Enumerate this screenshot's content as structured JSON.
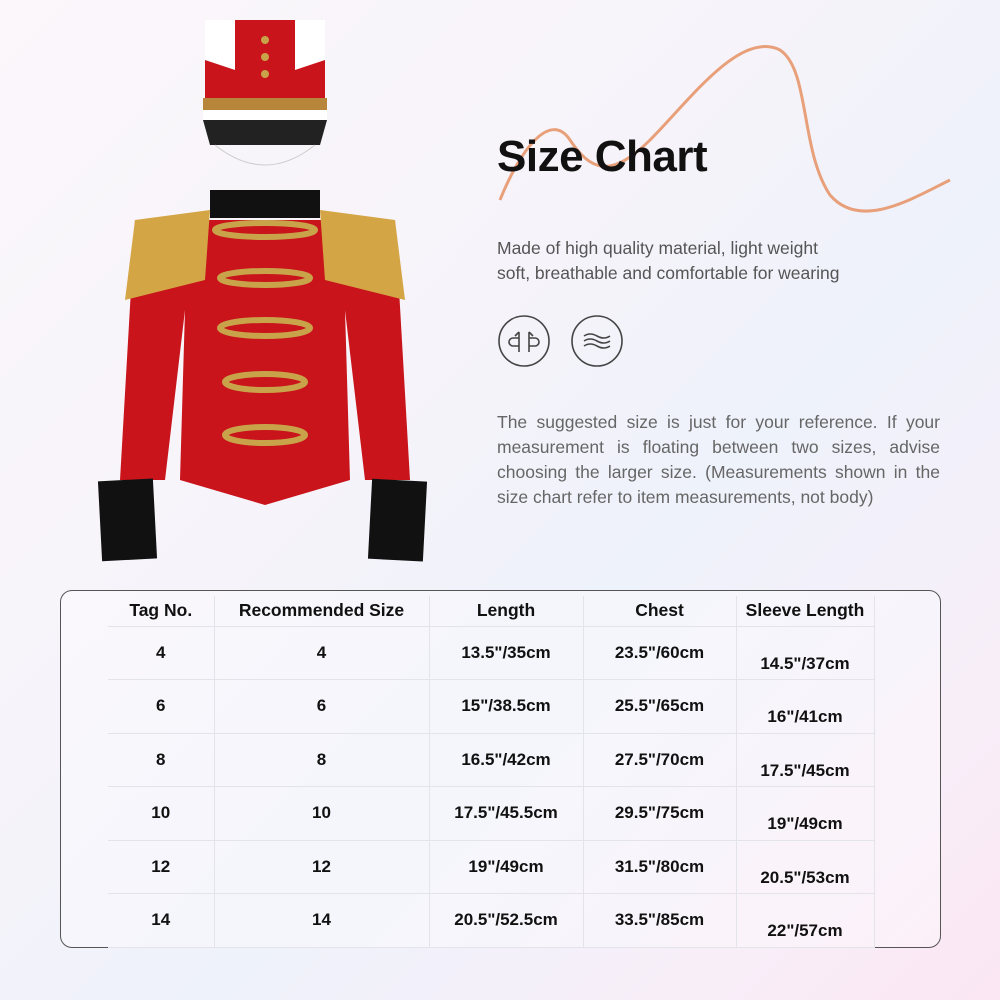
{
  "heading": "Size Chart",
  "description": [
    "Made of high quality material, light weight",
    "soft, breathable and comfortable for wearing"
  ],
  "feature_icons": [
    "breathable-fabric-icon",
    "soft-wave-icon"
  ],
  "note": "The suggested size is just for your reference. If your measurement is floating between two sizes, advise choosing the larger size. (Measurements shown in the size chart refer to item measurements, not body)",
  "colors": {
    "accent_curve": "#e8a07a",
    "jacket": "#c8141a",
    "gold": "#c9a34a"
  },
  "table": {
    "headers": [
      "Tag No.",
      "Recommended Size",
      "Length",
      "Chest",
      "Sleeve Length"
    ],
    "rows": [
      [
        "4",
        "4",
        "13.5\"/35cm",
        "23.5\"/60cm",
        "14.5\"/37cm"
      ],
      [
        "6",
        "6",
        "15\"/38.5cm",
        "25.5\"/65cm",
        "16\"/41cm"
      ],
      [
        "8",
        "8",
        "16.5\"/42cm",
        "27.5\"/70cm",
        "17.5\"/45cm"
      ],
      [
        "10",
        "10",
        "17.5\"/45.5cm",
        "29.5\"/75cm",
        "19\"/49cm"
      ],
      [
        "12",
        "12",
        "19\"/49cm",
        "31.5\"/80cm",
        "20.5\"/53cm"
      ],
      [
        "14",
        "14",
        "20.5\"/52.5cm",
        "33.5\"/85cm",
        "22\"/57cm"
      ]
    ]
  }
}
